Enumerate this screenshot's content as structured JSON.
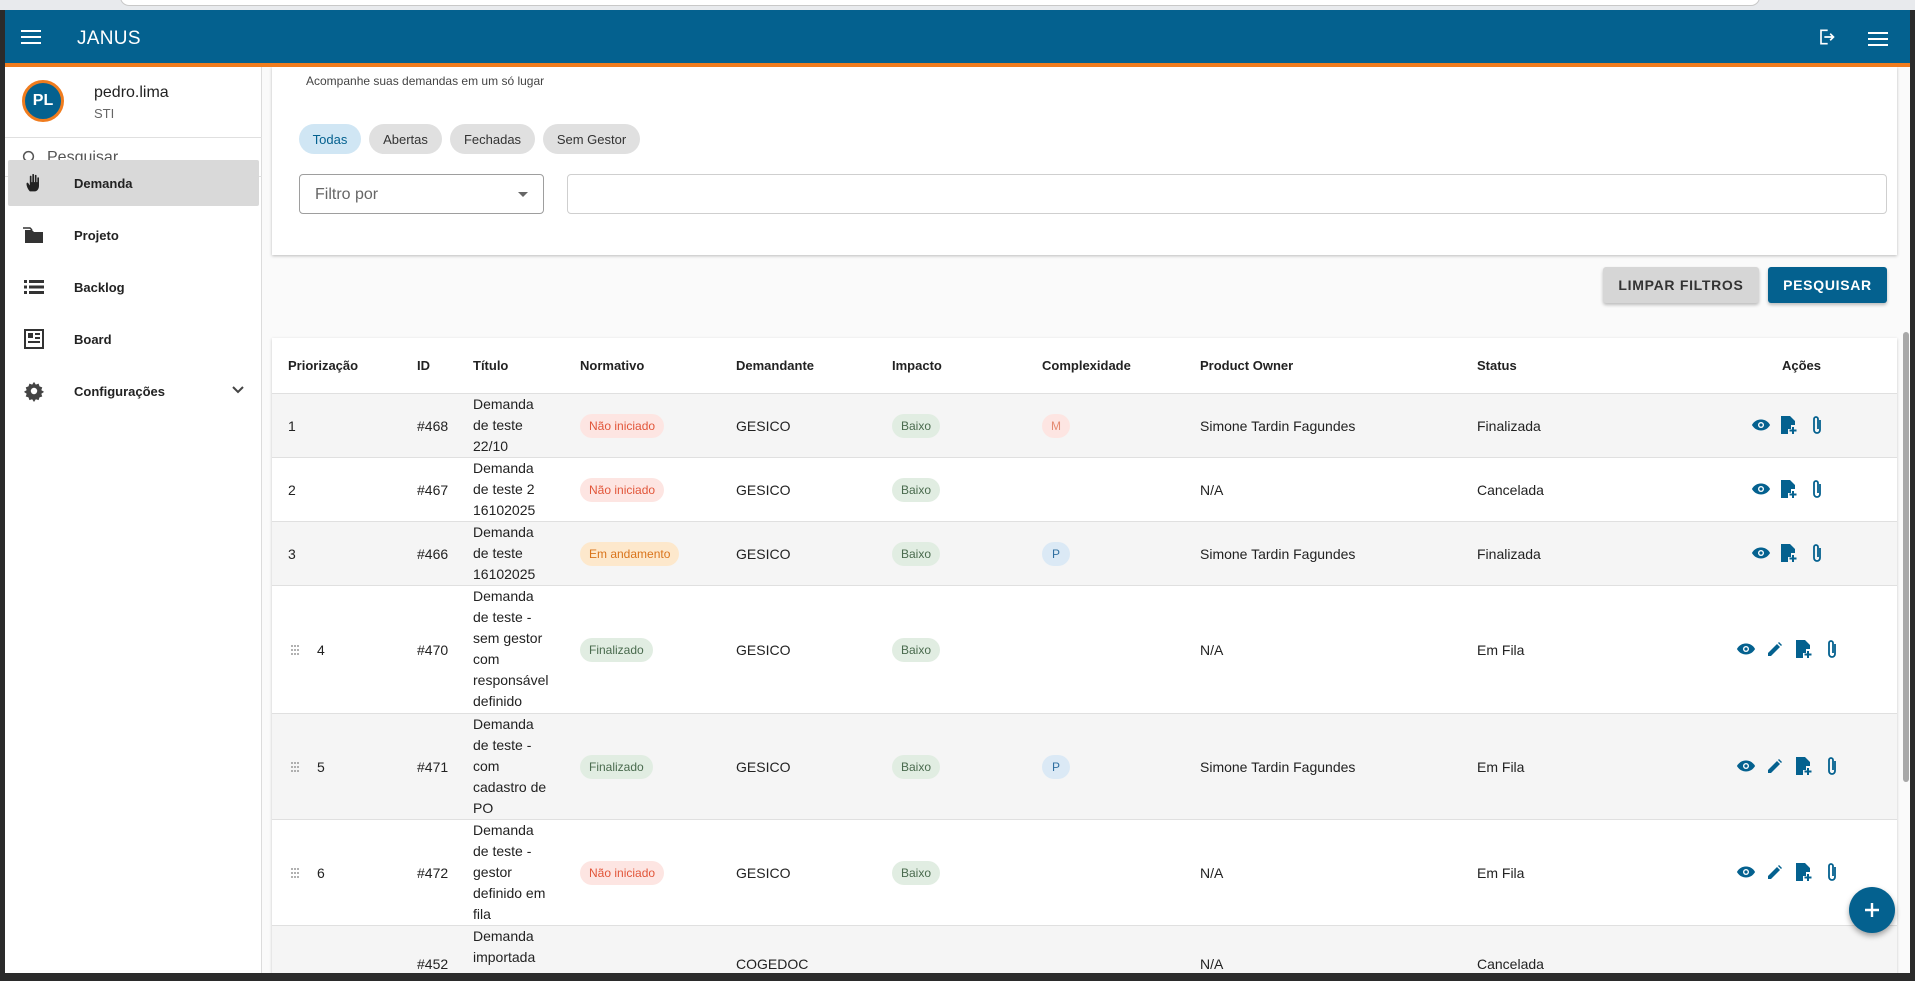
{
  "app": {
    "title": "JANUS"
  },
  "user": {
    "initials": "PL",
    "name": "pedro.lima",
    "department": "STI"
  },
  "sidebar": {
    "search_placeholder": "Pesquisar",
    "items": [
      {
        "label": "Demanda",
        "icon": "hand-icon",
        "active": true
      },
      {
        "label": "Projeto",
        "icon": "folder-icon"
      },
      {
        "label": "Backlog",
        "icon": "list-icon"
      },
      {
        "label": "Board",
        "icon": "board-icon"
      },
      {
        "label": "Configurações",
        "icon": "gear-icon"
      }
    ]
  },
  "filters": {
    "subtitle": "Acompanhe suas demandas em um só lugar",
    "chips": [
      "Todas",
      "Abertas",
      "Fechadas",
      "Sem Gestor"
    ],
    "selected_chip": "Todas",
    "filter_by_label": "Filtro por",
    "search_value": "",
    "clear_label": "LIMPAR FILTROS",
    "search_label": "PESQUISAR"
  },
  "table": {
    "headers": [
      "Priorização",
      "ID",
      "Título",
      "Normativo",
      "Demandante",
      "Impacto",
      "Complexidade",
      "Product Owner",
      "Status",
      "Ações"
    ],
    "rows": [
      {
        "prio": "1",
        "id": "#468",
        "title": "Demanda de teste 22/10",
        "normativo": "Não iniciado",
        "demandante": "GESICO",
        "impacto": "Baixo",
        "complexidade": "M",
        "po": "Simone Tardin Fagundes",
        "status": "Finalizada"
      },
      {
        "prio": "2",
        "id": "#467",
        "title": "Demanda de teste 2 16102025",
        "normativo": "Não iniciado",
        "demandante": "GESICO",
        "impacto": "Baixo",
        "complexidade": "",
        "po": "N/A",
        "status": "Cancelada"
      },
      {
        "prio": "3",
        "id": "#466",
        "title": "Demanda de teste 16102025",
        "normativo": "Em andamento",
        "demandante": "GESICO",
        "impacto": "Baixo",
        "complexidade": "P",
        "po": "Simone Tardin Fagundes",
        "status": "Finalizada"
      },
      {
        "prio": "4",
        "id": "#470",
        "title": "Demanda de teste - sem gestor com responsável definido",
        "normativo": "Finalizado",
        "demandante": "GESICO",
        "impacto": "Baixo",
        "complexidade": "",
        "po": "N/A",
        "status": "Em Fila"
      },
      {
        "prio": "5",
        "id": "#471",
        "title": "Demanda de teste - com cadastro de PO",
        "normativo": "Finalizado",
        "demandante": "GESICO",
        "impacto": "Baixo",
        "complexidade": "P",
        "po": "Simone Tardin Fagundes",
        "status": "Em Fila"
      },
      {
        "prio": "6",
        "id": "#472",
        "title": "Demanda de teste - gestor definido em fila",
        "normativo": "Não iniciado",
        "demandante": "GESICO",
        "impacto": "Baixo",
        "complexidade": "",
        "po": "N/A",
        "status": "Em Fila"
      },
      {
        "prio": "",
        "id": "#452",
        "title": "Demanda importada",
        "normativo": "",
        "demandante": "COGEDOC",
        "impacto": "",
        "complexidade": "",
        "po": "N/A",
        "status": "Cancelada"
      }
    ]
  },
  "colors": {
    "primary": "#04618f",
    "accent": "#f07c1e"
  }
}
